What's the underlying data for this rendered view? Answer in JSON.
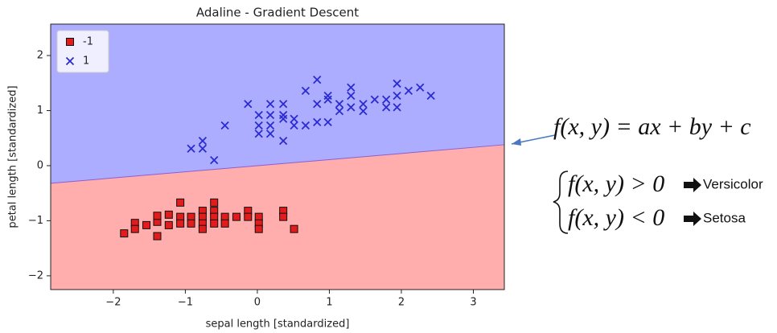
{
  "chart_data": {
    "type": "scatter",
    "title": "Adaline - Gradient Descent",
    "x_label": "sepal length [standardized]",
    "y_label": "petal length [standardized]",
    "xlim": [
      -2.87,
      3.43
    ],
    "ylim": [
      -2.25,
      2.57
    ],
    "xticks": [
      {
        "value": -2,
        "label": "−2"
      },
      {
        "value": -1,
        "label": "−1"
      },
      0,
      1,
      2,
      3
    ],
    "yticks": [
      {
        "value": -2,
        "label": "−2"
      },
      {
        "value": -1,
        "label": "−1"
      },
      0,
      1,
      2
    ],
    "legend": "upper left",
    "region_colors": {
      "above": "#adadff",
      "below": "#ffadad"
    },
    "decision_boundary": {
      "x": [
        -2.87,
        3.43
      ],
      "y": [
        -0.32,
        0.38
      ],
      "color": "#8a5fd0"
    },
    "series": [
      {
        "name": "-1",
        "color": "#e01c1c",
        "marker": "square",
        "x": [
          -1.85,
          -1.7,
          -1.7,
          -1.54,
          -1.39,
          -1.39,
          -1.23,
          -1.23,
          -1.07,
          -1.07,
          -1.07,
          -0.92,
          -0.92,
          -0.76,
          -0.76,
          -0.76,
          -0.76,
          -0.6,
          -0.6,
          -0.6,
          -0.6,
          -0.45,
          -0.45,
          -0.29,
          -0.13,
          -0.13,
          0.02,
          0.02,
          0.02,
          0.36,
          0.36,
          0.51,
          -1.39
        ],
        "y": [
          -1.23,
          -1.04,
          -1.15,
          -1.08,
          -1.02,
          -1.28,
          -0.89,
          -1.08,
          -0.67,
          -0.93,
          -1.05,
          -0.93,
          -1.05,
          -0.82,
          -0.93,
          -1.05,
          -1.15,
          -0.67,
          -0.82,
          -0.93,
          -1.05,
          -0.93,
          -1.05,
          -0.93,
          -0.82,
          -0.93,
          -0.93,
          -1.05,
          -1.15,
          -0.82,
          -0.93,
          -1.15,
          -0.91
        ]
      },
      {
        "name": "1",
        "color": "#2b2bd0",
        "marker": "x",
        "x": [
          -0.92,
          -0.76,
          -0.76,
          -0.6,
          -0.45,
          -0.13,
          0.02,
          0.02,
          0.02,
          0.18,
          0.18,
          0.18,
          0.18,
          0.36,
          0.36,
          0.36,
          0.36,
          0.51,
          0.51,
          0.67,
          0.67,
          0.83,
          0.83,
          0.83,
          0.98,
          0.98,
          0.98,
          1.14,
          1.14,
          1.3,
          1.3,
          1.3,
          1.47,
          1.47,
          1.63,
          1.79,
          1.79,
          1.94,
          1.94,
          1.94,
          2.1,
          2.26,
          2.41
        ],
        "y": [
          0.31,
          0.45,
          0.31,
          0.1,
          0.73,
          1.12,
          0.92,
          0.73,
          0.58,
          1.12,
          0.92,
          0.73,
          0.58,
          1.12,
          0.92,
          0.85,
          0.45,
          0.85,
          0.73,
          0.73,
          1.36,
          1.12,
          1.56,
          0.79,
          1.27,
          0.79,
          1.2,
          1.12,
          0.99,
          1.27,
          1.42,
          1.06,
          1.12,
          0.99,
          1.2,
          1.2,
          1.06,
          1.49,
          1.27,
          1.06,
          1.36,
          1.42,
          1.27
        ]
      }
    ],
    "annotations": {
      "boundary_equation": "f(x, y) = ax + by + c",
      "rule_positive": "f(x, y) > 0",
      "label_positive": "Versicolor",
      "rule_negative": "f(x, y) < 0",
      "label_negative": "Setosa"
    }
  }
}
